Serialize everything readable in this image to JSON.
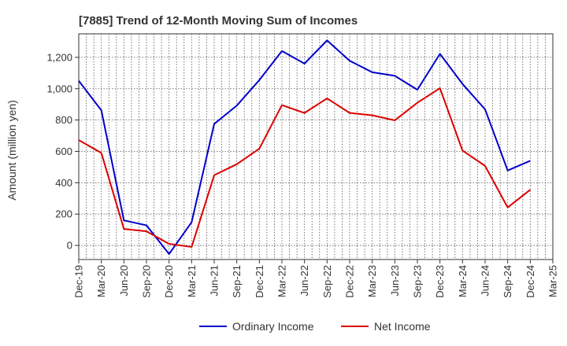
{
  "chart_data": {
    "type": "line",
    "title": "[7885]  Trend of 12-Month Moving Sum of Incomes",
    "xlabel": "",
    "ylabel": "Amount (million yen)",
    "ylim": [
      -90,
      1350
    ],
    "yticks": [
      0,
      200,
      400,
      600,
      800,
      1000,
      1200
    ],
    "ytick_labels": [
      "0",
      "200",
      "400",
      "600",
      "800",
      "1,000",
      "1,200"
    ],
    "grid": true,
    "legend_position": "bottom-center",
    "categories": [
      "Dec-19",
      "Mar-20",
      "Jun-20",
      "Sep-20",
      "Dec-20",
      "Mar-21",
      "Jun-21",
      "Sep-21",
      "Dec-21",
      "Mar-22",
      "Jun-22",
      "Sep-22",
      "Dec-22",
      "Mar-23",
      "Jun-23",
      "Sep-23",
      "Dec-23",
      "Mar-24",
      "Jun-24",
      "Sep-24",
      "Dec-24",
      "Mar-25"
    ],
    "series": [
      {
        "name": "Ordinary Income",
        "color": "#0000cc",
        "values": [
          1050,
          862,
          160,
          128,
          -55,
          148,
          775,
          892,
          1055,
          1240,
          1160,
          1308,
          1178,
          1105,
          1082,
          993,
          1222,
          1030,
          868,
          478,
          540,
          null
        ]
      },
      {
        "name": "Net Income",
        "color": "#dd0000",
        "values": [
          672,
          590,
          105,
          90,
          10,
          -10,
          448,
          518,
          617,
          895,
          845,
          938,
          845,
          830,
          798,
          910,
          1003,
          605,
          507,
          242,
          355,
          null
        ]
      }
    ]
  }
}
